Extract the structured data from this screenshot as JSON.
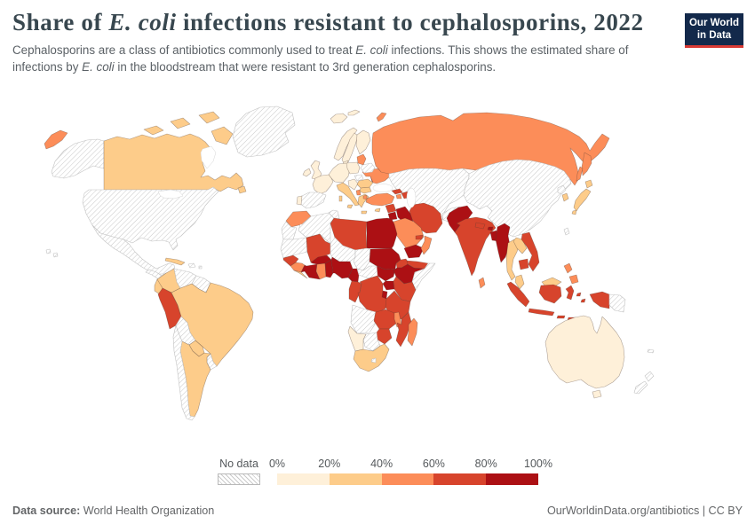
{
  "header": {
    "title_parts": [
      {
        "text": "Share of "
      },
      {
        "text": "E. coli",
        "italic": true
      },
      {
        "text": " infections resistant to cephalosporins, 2022"
      }
    ],
    "subtitle_parts": [
      {
        "text": "Cephalosporins are a class of antibiotics commonly used to treat "
      },
      {
        "text": "E. coli",
        "italic": true
      },
      {
        "text": " infections. This shows the estimated share of infections by "
      },
      {
        "text": "E. coli",
        "italic": true
      },
      {
        "text": " in the bloodstream that were resistant to 3rd generation cephalosporins."
      }
    ]
  },
  "logo": {
    "line1": "Our World",
    "line2": "in Data",
    "bg": "#13294b",
    "accent": "#d93a34"
  },
  "legend": {
    "no_data_label": "No data",
    "ticks": [
      "0%",
      "20%",
      "40%",
      "60%",
      "80%",
      "100%"
    ],
    "colors": [
      "#fef0d9",
      "#fdcc8a",
      "#fc8d59",
      "#d7442c",
      "#ac1014"
    ],
    "hatch_color": "#c9c9c9"
  },
  "footer": {
    "source_label": "Data source:",
    "source_value": " World Health Organization",
    "right": "OurWorldinData.org/antibiotics | CC BY"
  },
  "map": {
    "ocean": "#ffffff",
    "border_colored": "rgba(80,60,50,0.45)",
    "border_nodata": "#c2c2c2",
    "regions": {
      "chukotka-wrap": 2,
      "alaska": "no_data",
      "canada": 1,
      "canadian-islands": 1,
      "greenland": "no_data",
      "usa": "no_data",
      "mexico": "no_data",
      "central-america": "no_data",
      "cuba": 1,
      "hispaniola": "no_data",
      "hawaii": "no_data",
      "newfoundland": 1,
      "colombia": 1,
      "venezuela": "no_data",
      "guyanas": "no_data",
      "ecuador": 1,
      "peru": 3,
      "brazil": 1,
      "bolivia": "no_data",
      "paraguay": 1,
      "chile": "no_data",
      "argentina": 1,
      "uruguay": "no_data",
      "iceland": 0,
      "svalbard": 0,
      "norway": 0,
      "sweden": 0,
      "finland": 0,
      "denmark": 0,
      "uk": 0,
      "ireland": 0,
      "germany-central": 0,
      "poland": 0,
      "france": 0,
      "spain": "no_data",
      "portugal": 0,
      "italy": 1,
      "balkans": 0,
      "hungary": "no_data",
      "albania": 2,
      "greece": 1,
      "bulgaria": 1,
      "romania": 1,
      "moldova": 4,
      "ukraine": 2,
      "belarus": "no_data",
      "baltics": 2,
      "turkey": 2,
      "cyprus": 1,
      "russia": 2,
      "novaya-zemlya": 2,
      "kamchatka": 2,
      "sakhalin": 2,
      "kazakh-centralasia": "no_data",
      "china-mongolia": "no_data",
      "taiwan": "no_data",
      "nkorea": "no_data",
      "skorea": 1,
      "japan": 1,
      "georgia": 3,
      "armenia": 2,
      "azerbaijan": 3,
      "syria": 3,
      "jordan": 4,
      "iraq": 4,
      "iran": 3,
      "saudi": 2,
      "yemen": 4,
      "oman": 2,
      "uae": 3,
      "afghanistan": "no_data",
      "morocco": 2,
      "wsahara": "no_data",
      "algeria": "no_data",
      "tunisia": "no_data",
      "libya": 3,
      "egypt": 4,
      "mauritania": "no_data",
      "mali": 3,
      "niger": "no_data",
      "chad": "no_data",
      "sudan": 4,
      "ssudan": 4,
      "eritrea": 3,
      "ethiopia": 4,
      "somaliland": 3,
      "somalia": "no_data",
      "senegal": 3,
      "guinea": 2,
      "sierraleone-liberia": 1,
      "ivorycoast": 4,
      "ghana": 2,
      "togobenin": 4,
      "burkina": 4,
      "nigeria": 4,
      "cameroon": 4,
      "car": "no_data",
      "gabon-congo": 3,
      "drc": 3,
      "uganda": 4,
      "kenya": 3,
      "rwanda-burundi": 4,
      "tanzania": 3,
      "angola": "no_data",
      "zambia": 3,
      "malawi": 2,
      "mozambique": 3,
      "zimbabwe": 3,
      "botswana": "no_data",
      "namibia": 0,
      "southafrica": 1,
      "lesotho": "no_data",
      "madagascar": 2,
      "pakistan": 4,
      "india": 3,
      "nepal": 3,
      "bhutan": 4,
      "bangladesh": 4,
      "srilanka": 2,
      "myanmar": 4,
      "thailand": 1,
      "laos": 1,
      "cambodia": 3,
      "vietnam": 3,
      "malaysiapen": 1,
      "sumatra": 3,
      "borneo-my": 1,
      "kalimantan": 3,
      "java": 3,
      "sulawesi": 3,
      "moluccas": 3,
      "lesser-sunda": 3,
      "papua-id": 3,
      "png": "no_data",
      "philippines": 2,
      "australia": 0,
      "tasmania": 0,
      "new-zealand": "no_data",
      "new-caledonia": "no_data"
    }
  }
}
